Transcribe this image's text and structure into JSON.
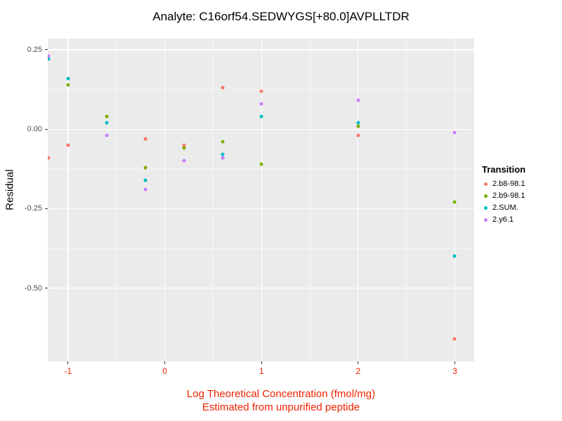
{
  "chart_data": {
    "type": "scatter",
    "title": "Analyte: C16orf54.SEDWYGS[+80.0]AVPLLTDR",
    "ylabel": "Residual",
    "xlabel_line1": "Log Theoretical Concentration (fmol/mg)",
    "xlabel_line2": "Estimated from unpurified peptide",
    "legend_title": "Transition",
    "legend_position": "right",
    "grid": true,
    "xlim": [
      -1.21,
      3.2
    ],
    "ylim": [
      -0.73,
      0.285
    ],
    "xticks": [
      -1,
      0,
      1,
      2,
      3
    ],
    "xtick_labels": [
      "-1",
      "0",
      "1",
      "2",
      "3"
    ],
    "yticks": [
      0.25,
      0,
      -0.25,
      -0.5
    ],
    "ytick_labels": [
      "0.25",
      "0.00",
      "-0.25",
      "-0.50"
    ],
    "xminor": [
      -0.5,
      0.5,
      1.5,
      2.5
    ],
    "yminor": [
      0.125,
      -0.125,
      -0.375,
      -0.625
    ],
    "panel_bg": "#ebebeb",
    "grid_color": "#ffffff",
    "x_axis_color": "#ee2200",
    "y_tick_color": "#4d4d4d",
    "series": [
      {
        "name": "2.b8-98.1",
        "color": "#F8766D",
        "points": [
          [
            -1.2,
            -0.09
          ],
          [
            -1,
            -0.05
          ],
          [
            -0.2,
            -0.03
          ],
          [
            0.2,
            -0.05
          ],
          [
            0.6,
            0.13
          ],
          [
            1,
            0.12
          ],
          [
            2,
            -0.02
          ],
          [
            3,
            -0.66
          ]
        ]
      },
      {
        "name": "2.b9-98.1",
        "color": "#7CAE00",
        "points": [
          [
            -1,
            0.14
          ],
          [
            -0.6,
            0.04
          ],
          [
            -0.2,
            -0.12
          ],
          [
            0.2,
            -0.06
          ],
          [
            0.6,
            -0.04
          ],
          [
            1,
            -0.11
          ],
          [
            2,
            0.01
          ],
          [
            3,
            -0.23
          ]
        ]
      },
      {
        "name": "2.SUM.",
        "color": "#00BFC4",
        "points": [
          [
            -1.2,
            0.22
          ],
          [
            -1,
            0.16
          ],
          [
            -0.6,
            0.02
          ],
          [
            -0.2,
            -0.16
          ],
          [
            0.6,
            -0.08
          ],
          [
            1,
            0.04
          ],
          [
            2,
            0.02
          ],
          [
            3,
            -0.4
          ]
        ]
      },
      {
        "name": "2.y6.1",
        "color": "#C77CFF",
        "points": [
          [
            -1.2,
            0.23
          ],
          [
            -0.6,
            -0.02
          ],
          [
            -0.2,
            -0.19
          ],
          [
            0.2,
            -0.1
          ],
          [
            0.6,
            -0.09
          ],
          [
            1,
            0.08
          ],
          [
            2,
            0.09
          ],
          [
            3,
            -0.01
          ]
        ]
      }
    ]
  }
}
